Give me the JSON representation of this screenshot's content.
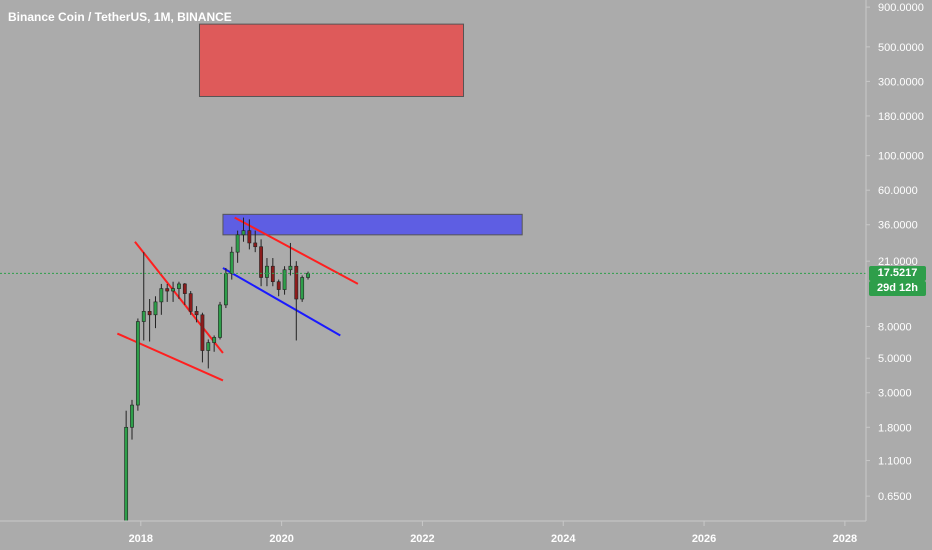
{
  "header": {
    "title": "Binance Coin / TetherUS, 1M, BINANCE"
  },
  "price_label": {
    "value": "17.5217",
    "countdown": "29d 12h"
  },
  "chart_data": {
    "type": "candlestick",
    "title": "Binance Coin / TetherUS, 1M, BINANCE",
    "y_scale": "log",
    "ylim": [
      0.45,
      1000
    ],
    "xlim": [
      2016.0,
      2028.3
    ],
    "y_ticks": [
      "900.0000",
      "500.0000",
      "300.0000",
      "180.0000",
      "100.0000",
      "60.0000",
      "36.0000",
      "21.0000",
      "8.0000",
      "5.0000",
      "3.0000",
      "1.8000",
      "1.1000",
      "0.6500"
    ],
    "x_ticks": [
      "2018",
      "2020",
      "2022",
      "2024",
      "2026",
      "2028"
    ],
    "current_price": 17.5217,
    "colors": {
      "up": "#2e9e4a",
      "down": "#8c1c1c",
      "trendline_red": "#ff1f1f",
      "trendline_blue": "#1a1aff",
      "zone_red": "#e05555",
      "zone_blue": "#5a5ae6",
      "price_line": "#2e9e4a"
    },
    "candles": [
      {
        "t": "2017-10",
        "o": 0.45,
        "h": 2.3,
        "l": 0.45,
        "c": 1.8
      },
      {
        "t": "2017-11",
        "o": 1.8,
        "h": 2.7,
        "l": 1.5,
        "c": 2.5
      },
      {
        "t": "2017-12",
        "o": 2.5,
        "h": 9.0,
        "l": 2.3,
        "c": 8.6
      },
      {
        "t": "2018-01",
        "o": 8.6,
        "h": 24.0,
        "l": 6.5,
        "c": 10.0
      },
      {
        "t": "2018-02",
        "o": 10.0,
        "h": 12.0,
        "l": 6.4,
        "c": 9.5
      },
      {
        "t": "2018-03",
        "o": 9.5,
        "h": 12.5,
        "l": 7.8,
        "c": 11.5
      },
      {
        "t": "2018-04",
        "o": 11.5,
        "h": 15.0,
        "l": 9.5,
        "c": 14.0
      },
      {
        "t": "2018-05",
        "o": 14.0,
        "h": 15.0,
        "l": 11.5,
        "c": 13.5
      },
      {
        "t": "2018-06",
        "o": 13.5,
        "h": 15.5,
        "l": 11.5,
        "c": 14.0
      },
      {
        "t": "2018-07",
        "o": 14.0,
        "h": 15.5,
        "l": 12.0,
        "c": 15.0
      },
      {
        "t": "2018-08",
        "o": 15.0,
        "h": 15.2,
        "l": 11.0,
        "c": 13.0
      },
      {
        "t": "2018-09",
        "o": 13.0,
        "h": 13.5,
        "l": 9.5,
        "c": 10.0
      },
      {
        "t": "2018-10",
        "o": 10.0,
        "h": 10.8,
        "l": 8.5,
        "c": 9.5
      },
      {
        "t": "2018-11",
        "o": 9.5,
        "h": 9.8,
        "l": 4.7,
        "c": 5.6
      },
      {
        "t": "2018-12",
        "o": 5.6,
        "h": 6.6,
        "l": 4.3,
        "c": 6.3
      },
      {
        "t": "2019-01",
        "o": 6.3,
        "h": 7.0,
        "l": 5.5,
        "c": 6.8
      },
      {
        "t": "2019-02",
        "o": 6.8,
        "h": 11.5,
        "l": 6.6,
        "c": 11.0
      },
      {
        "t": "2019-03",
        "o": 11.0,
        "h": 19.0,
        "l": 10.5,
        "c": 17.5
      },
      {
        "t": "2019-04",
        "o": 17.5,
        "h": 26.0,
        "l": 16.0,
        "c": 24.0
      },
      {
        "t": "2019-05",
        "o": 24.0,
        "h": 33.0,
        "l": 20.5,
        "c": 31.0
      },
      {
        "t": "2019-06",
        "o": 31.0,
        "h": 40.0,
        "l": 28.0,
        "c": 33.0
      },
      {
        "t": "2019-07",
        "o": 33.0,
        "h": 39.0,
        "l": 25.0,
        "c": 27.5
      },
      {
        "t": "2019-08",
        "o": 27.5,
        "h": 33.0,
        "l": 24.0,
        "c": 26.0
      },
      {
        "t": "2019-09",
        "o": 26.0,
        "h": 29.0,
        "l": 14.5,
        "c": 16.5
      },
      {
        "t": "2019-10",
        "o": 16.5,
        "h": 22.0,
        "l": 14.5,
        "c": 19.5
      },
      {
        "t": "2019-11",
        "o": 19.5,
        "h": 22.0,
        "l": 14.5,
        "c": 15.5
      },
      {
        "t": "2019-12",
        "o": 15.5,
        "h": 16.0,
        "l": 12.5,
        "c": 13.8
      },
      {
        "t": "2020-01",
        "o": 13.8,
        "h": 19.5,
        "l": 12.8,
        "c": 18.5
      },
      {
        "t": "2020-02",
        "o": 18.5,
        "h": 27.5,
        "l": 17.0,
        "c": 19.5
      },
      {
        "t": "2020-03",
        "o": 19.5,
        "h": 21.0,
        "l": 6.5,
        "c": 12.0
      },
      {
        "t": "2020-04",
        "o": 12.0,
        "h": 17.0,
        "l": 11.5,
        "c": 16.5
      },
      {
        "t": "2020-05",
        "o": 16.5,
        "h": 18.0,
        "l": 16.0,
        "c": 17.5217
      }
    ],
    "trendlines": [
      {
        "color": "trendline_red",
        "from": [
          "2017-12",
          28.0
        ],
        "to": [
          "2019-03",
          5.4
        ]
      },
      {
        "color": "trendline_red",
        "from": [
          "2017-09",
          7.2
        ],
        "to": [
          "2019-03",
          3.6
        ]
      },
      {
        "color": "trendline_red",
        "from": [
          "2019-05",
          40.0
        ],
        "to": [
          "2021-02",
          15.0
        ]
      },
      {
        "color": "trendline_blue",
        "from": [
          "2019-03",
          19.0
        ],
        "to": [
          "2020-11",
          7.0
        ]
      }
    ],
    "zones": [
      {
        "color": "zone_red",
        "x": [
          "2018-11",
          "2022-08"
        ],
        "y": [
          240.0,
          700.0
        ]
      },
      {
        "color": "zone_blue",
        "x": [
          "2019-03",
          "2023-06"
        ],
        "y": [
          31.0,
          42.0
        ]
      }
    ]
  }
}
